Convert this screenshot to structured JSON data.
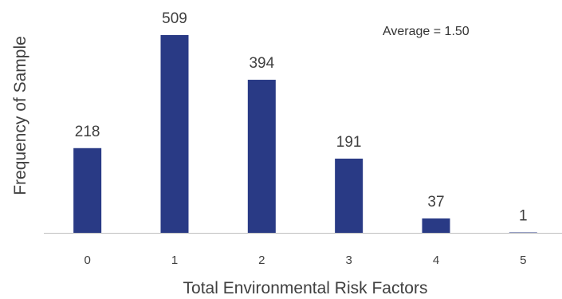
{
  "chart_data": {
    "type": "bar",
    "categories": [
      "0",
      "1",
      "2",
      "3",
      "4",
      "5"
    ],
    "values": [
      218,
      509,
      394,
      191,
      37,
      1
    ],
    "data_labels": [
      "218",
      "509",
      "394",
      "191",
      "37",
      "1"
    ],
    "xlabel": "Total Environmental Risk Factors",
    "ylabel": "Frequency of Sample",
    "annotation": "Average = 1.50",
    "ylim": [
      0,
      509
    ],
    "grid": false,
    "legend": "none",
    "bar_color": "#293a85",
    "axis_color": "#bfbfbf",
    "text_color": "#404040"
  }
}
